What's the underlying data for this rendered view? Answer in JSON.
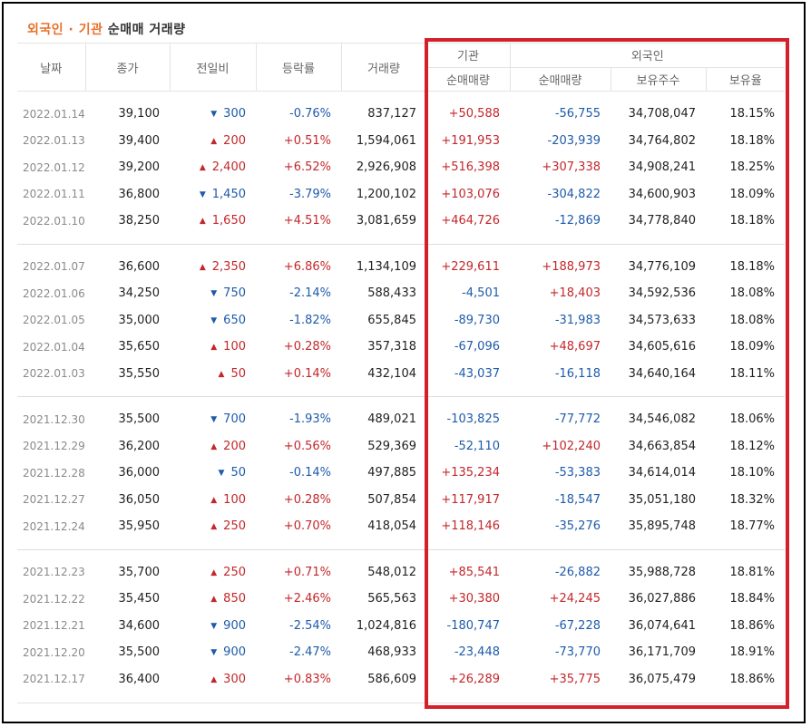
{
  "title": {
    "accent": "외국인 · 기관",
    "rest": "순매매 거래량"
  },
  "headers": {
    "date": "날짜",
    "close": "종가",
    "change": "전일비",
    "rate": "등락률",
    "volume": "거래량",
    "inst_group": "기관",
    "foreign_group": "외국인",
    "inst_net": "순매매량",
    "foreign_net": "순매매량",
    "foreign_shares": "보유주수",
    "foreign_ratio": "보유율"
  },
  "colors": {
    "up": "#c3272b",
    "down": "#1f5ba9",
    "highlight": "#d3202a",
    "title_accent": "#e8702a"
  },
  "groups": [
    [
      {
        "date": "2022.01.14",
        "close": "39,100",
        "dir": "down",
        "change": "300",
        "rate": "-0.76%",
        "volume": "837,127",
        "inst": "+50,588",
        "foreign": "-56,755",
        "shares": "34,708,047",
        "ratio": "18.15%"
      },
      {
        "date": "2022.01.13",
        "close": "39,400",
        "dir": "up",
        "change": "200",
        "rate": "+0.51%",
        "volume": "1,594,061",
        "inst": "+191,953",
        "foreign": "-203,939",
        "shares": "34,764,802",
        "ratio": "18.18%"
      },
      {
        "date": "2022.01.12",
        "close": "39,200",
        "dir": "up",
        "change": "2,400",
        "rate": "+6.52%",
        "volume": "2,926,908",
        "inst": "+516,398",
        "foreign": "+307,338",
        "shares": "34,908,241",
        "ratio": "18.25%"
      },
      {
        "date": "2022.01.11",
        "close": "36,800",
        "dir": "down",
        "change": "1,450",
        "rate": "-3.79%",
        "volume": "1,200,102",
        "inst": "+103,076",
        "foreign": "-304,822",
        "shares": "34,600,903",
        "ratio": "18.09%"
      },
      {
        "date": "2022.01.10",
        "close": "38,250",
        "dir": "up",
        "change": "1,650",
        "rate": "+4.51%",
        "volume": "3,081,659",
        "inst": "+464,726",
        "foreign": "-12,869",
        "shares": "34,778,840",
        "ratio": "18.18%"
      }
    ],
    [
      {
        "date": "2022.01.07",
        "close": "36,600",
        "dir": "up",
        "change": "2,350",
        "rate": "+6.86%",
        "volume": "1,134,109",
        "inst": "+229,611",
        "foreign": "+188,973",
        "shares": "34,776,109",
        "ratio": "18.18%"
      },
      {
        "date": "2022.01.06",
        "close": "34,250",
        "dir": "down",
        "change": "750",
        "rate": "-2.14%",
        "volume": "588,433",
        "inst": "-4,501",
        "foreign": "+18,403",
        "shares": "34,592,536",
        "ratio": "18.08%"
      },
      {
        "date": "2022.01.05",
        "close": "35,000",
        "dir": "down",
        "change": "650",
        "rate": "-1.82%",
        "volume": "655,845",
        "inst": "-89,730",
        "foreign": "-31,983",
        "shares": "34,573,633",
        "ratio": "18.08%"
      },
      {
        "date": "2022.01.04",
        "close": "35,650",
        "dir": "up",
        "change": "100",
        "rate": "+0.28%",
        "volume": "357,318",
        "inst": "-67,096",
        "foreign": "+48,697",
        "shares": "34,605,616",
        "ratio": "18.09%"
      },
      {
        "date": "2022.01.03",
        "close": "35,550",
        "dir": "up",
        "change": "50",
        "rate": "+0.14%",
        "volume": "432,104",
        "inst": "-43,037",
        "foreign": "-16,118",
        "shares": "34,640,164",
        "ratio": "18.11%"
      }
    ],
    [
      {
        "date": "2021.12.30",
        "close": "35,500",
        "dir": "down",
        "change": "700",
        "rate": "-1.93%",
        "volume": "489,021",
        "inst": "-103,825",
        "foreign": "-77,772",
        "shares": "34,546,082",
        "ratio": "18.06%"
      },
      {
        "date": "2021.12.29",
        "close": "36,200",
        "dir": "up",
        "change": "200",
        "rate": "+0.56%",
        "volume": "529,369",
        "inst": "-52,110",
        "foreign": "+102,240",
        "shares": "34,663,854",
        "ratio": "18.12%"
      },
      {
        "date": "2021.12.28",
        "close": "36,000",
        "dir": "down",
        "change": "50",
        "rate": "-0.14%",
        "volume": "497,885",
        "inst": "+135,234",
        "foreign": "-53,383",
        "shares": "34,614,014",
        "ratio": "18.10%"
      },
      {
        "date": "2021.12.27",
        "close": "36,050",
        "dir": "up",
        "change": "100",
        "rate": "+0.28%",
        "volume": "507,854",
        "inst": "+117,917",
        "foreign": "-18,547",
        "shares": "35,051,180",
        "ratio": "18.32%"
      },
      {
        "date": "2021.12.24",
        "close": "35,950",
        "dir": "up",
        "change": "250",
        "rate": "+0.70%",
        "volume": "418,054",
        "inst": "+118,146",
        "foreign": "-35,276",
        "shares": "35,895,748",
        "ratio": "18.77%"
      }
    ],
    [
      {
        "date": "2021.12.23",
        "close": "35,700",
        "dir": "up",
        "change": "250",
        "rate": "+0.71%",
        "volume": "548,012",
        "inst": "+85,541",
        "foreign": "-26,882",
        "shares": "35,988,728",
        "ratio": "18.81%"
      },
      {
        "date": "2021.12.22",
        "close": "35,450",
        "dir": "up",
        "change": "850",
        "rate": "+2.46%",
        "volume": "565,563",
        "inst": "+30,380",
        "foreign": "+24,245",
        "shares": "36,027,886",
        "ratio": "18.84%"
      },
      {
        "date": "2021.12.21",
        "close": "34,600",
        "dir": "down",
        "change": "900",
        "rate": "-2.54%",
        "volume": "1,024,816",
        "inst": "-180,747",
        "foreign": "-67,228",
        "shares": "36,074,641",
        "ratio": "18.86%"
      },
      {
        "date": "2021.12.20",
        "close": "35,500",
        "dir": "down",
        "change": "900",
        "rate": "-2.47%",
        "volume": "468,933",
        "inst": "-23,448",
        "foreign": "-73,770",
        "shares": "36,171,709",
        "ratio": "18.91%"
      },
      {
        "date": "2021.12.17",
        "close": "36,400",
        "dir": "up",
        "change": "300",
        "rate": "+0.83%",
        "volume": "586,609",
        "inst": "+26,289",
        "foreign": "+35,775",
        "shares": "36,075,479",
        "ratio": "18.86%"
      }
    ]
  ]
}
